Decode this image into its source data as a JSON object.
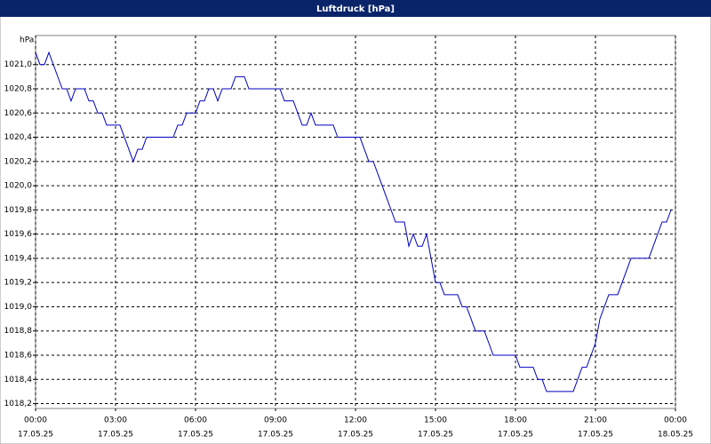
{
  "chart_data": {
    "type": "line",
    "title": "Luftdruck [hPa]",
    "y_unit": "hPa",
    "x": [
      0,
      10,
      20,
      30,
      40,
      50,
      60,
      70,
      80,
      90,
      100,
      110,
      120,
      130,
      140,
      150,
      160,
      170,
      180,
      190,
      200,
      210,
      220,
      230,
      240,
      250,
      260,
      270,
      280,
      290,
      300,
      310,
      320,
      330,
      340,
      350,
      360,
      370,
      380,
      390,
      400,
      410,
      420,
      430,
      440,
      450,
      460,
      470,
      480,
      490,
      500,
      510,
      520,
      530,
      540,
      550,
      560,
      570,
      580,
      590,
      600,
      610,
      620,
      630,
      640,
      650,
      660,
      670,
      680,
      690,
      700,
      710,
      720,
      730,
      740,
      750,
      760,
      770,
      780,
      790,
      800,
      810,
      820,
      830,
      840,
      850,
      860,
      870,
      880,
      890,
      900,
      910,
      920,
      930,
      940,
      950,
      960,
      970,
      980,
      990,
      1000,
      1010,
      1020,
      1030,
      1040,
      1050,
      1060,
      1070,
      1080,
      1090,
      1100,
      1110,
      1120,
      1130,
      1140,
      1150,
      1160,
      1170,
      1180,
      1190,
      1200,
      1210,
      1220,
      1230,
      1240,
      1250,
      1260,
      1270,
      1280,
      1290,
      1300,
      1310,
      1320,
      1330,
      1340,
      1350,
      1360,
      1370,
      1380,
      1390,
      1400,
      1410,
      1420,
      1430
    ],
    "series": [
      {
        "name": "Luftdruck",
        "color": "#0000c0",
        "values": [
          1021.1,
          1021.0,
          1021.0,
          1021.1,
          1021.0,
          1020.9,
          1020.8,
          1020.8,
          1020.7,
          1020.8,
          1020.8,
          1020.8,
          1020.7,
          1020.7,
          1020.6,
          1020.6,
          1020.5,
          1020.5,
          1020.5,
          1020.5,
          1020.4,
          1020.3,
          1020.2,
          1020.3,
          1020.3,
          1020.4,
          1020.4,
          1020.4,
          1020.4,
          1020.4,
          1020.4,
          1020.4,
          1020.5,
          1020.5,
          1020.6,
          1020.6,
          1020.6,
          1020.7,
          1020.7,
          1020.8,
          1020.8,
          1020.7,
          1020.8,
          1020.8,
          1020.8,
          1020.9,
          1020.9,
          1020.9,
          1020.8,
          1020.8,
          1020.8,
          1020.8,
          1020.8,
          1020.8,
          1020.8,
          1020.8,
          1020.7,
          1020.7,
          1020.7,
          1020.6,
          1020.5,
          1020.5,
          1020.6,
          1020.5,
          1020.5,
          1020.5,
          1020.5,
          1020.5,
          1020.4,
          1020.4,
          1020.4,
          1020.4,
          1020.4,
          1020.4,
          1020.3,
          1020.2,
          1020.2,
          1020.1,
          1020.0,
          1019.9,
          1019.8,
          1019.7,
          1019.7,
          1019.7,
          1019.5,
          1019.6,
          1019.5,
          1019.5,
          1019.6,
          1019.4,
          1019.2,
          1019.2,
          1019.1,
          1019.1,
          1019.1,
          1019.1,
          1019.0,
          1019.0,
          1018.9,
          1018.8,
          1018.8,
          1018.8,
          1018.7,
          1018.6,
          1018.6,
          1018.6,
          1018.6,
          1018.6,
          1018.6,
          1018.5,
          1018.5,
          1018.5,
          1018.5,
          1018.4,
          1018.4,
          1018.3,
          1018.3,
          1018.3,
          1018.3,
          1018.3,
          1018.3,
          1018.3,
          1018.4,
          1018.5,
          1018.5,
          1018.6,
          1018.7,
          1018.9,
          1019.0,
          1019.1,
          1019.1,
          1019.1,
          1019.2,
          1019.3,
          1019.4,
          1019.4,
          1019.4,
          1019.4,
          1019.4,
          1019.5,
          1019.6,
          1019.7,
          1019.7,
          1019.8
        ]
      }
    ],
    "xlim": [
      0,
      1440
    ],
    "xticks": [
      {
        "value": 0,
        "label": "00:00",
        "date": "17.05.25"
      },
      {
        "value": 180,
        "label": "03:00",
        "date": "17.05.25"
      },
      {
        "value": 360,
        "label": "06:00",
        "date": "17.05.25"
      },
      {
        "value": 540,
        "label": "09:00",
        "date": "17.05.25"
      },
      {
        "value": 720,
        "label": "12:00",
        "date": "17.05.25"
      },
      {
        "value": 900,
        "label": "15:00",
        "date": "17.05.25"
      },
      {
        "value": 1080,
        "label": "18:00",
        "date": "17.05.25"
      },
      {
        "value": 1260,
        "label": "21:00",
        "date": "17.05.25"
      },
      {
        "value": 1440,
        "label": "00:00",
        "date": "18.05.25"
      }
    ],
    "ylim": [
      1018.16,
      1021.24
    ],
    "yticks": [
      {
        "value": 1018.2,
        "label": "1018,2"
      },
      {
        "value": 1018.4,
        "label": "1018,4"
      },
      {
        "value": 1018.6,
        "label": "1018,6"
      },
      {
        "value": 1018.8,
        "label": "1018,8"
      },
      {
        "value": 1019.0,
        "label": "1019,0"
      },
      {
        "value": 1019.2,
        "label": "1019,2"
      },
      {
        "value": 1019.4,
        "label": "1019,4"
      },
      {
        "value": 1019.6,
        "label": "1019,6"
      },
      {
        "value": 1019.8,
        "label": "1019,8"
      },
      {
        "value": 1020.0,
        "label": "1020,0"
      },
      {
        "value": 1020.2,
        "label": "1020,2"
      },
      {
        "value": 1020.4,
        "label": "1020,4"
      },
      {
        "value": 1020.6,
        "label": "1020,6"
      },
      {
        "value": 1020.8,
        "label": "1020,8"
      },
      {
        "value": 1021.0,
        "label": "1021,0"
      }
    ],
    "grid": true
  }
}
